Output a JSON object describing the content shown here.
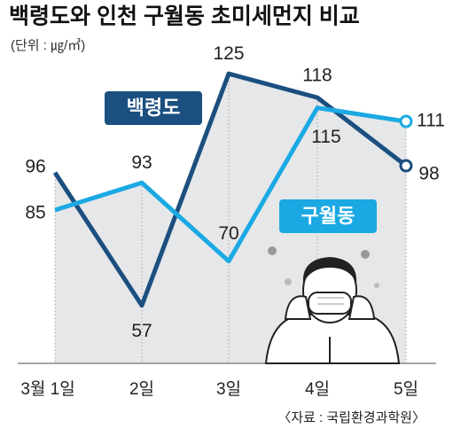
{
  "chart_data": {
    "type": "line",
    "title": "백령도와 인천 구월동 초미세먼지 비교",
    "subtitle": "(단위 : ㎍/㎥)",
    "source": "〈자료 : 국립환경과학원〉",
    "categories": [
      "3월 1일",
      "2일",
      "3일",
      "4일",
      "5일"
    ],
    "series": [
      {
        "name": "백령도",
        "color": "#1b4f80",
        "values": [
          96,
          57,
          125,
          118,
          98
        ]
      },
      {
        "name": "구월동",
        "color": "#1ba9e3",
        "values": [
          85,
          93,
          70,
          115,
          111
        ]
      }
    ],
    "ylim": [
      40,
      130
    ]
  }
}
